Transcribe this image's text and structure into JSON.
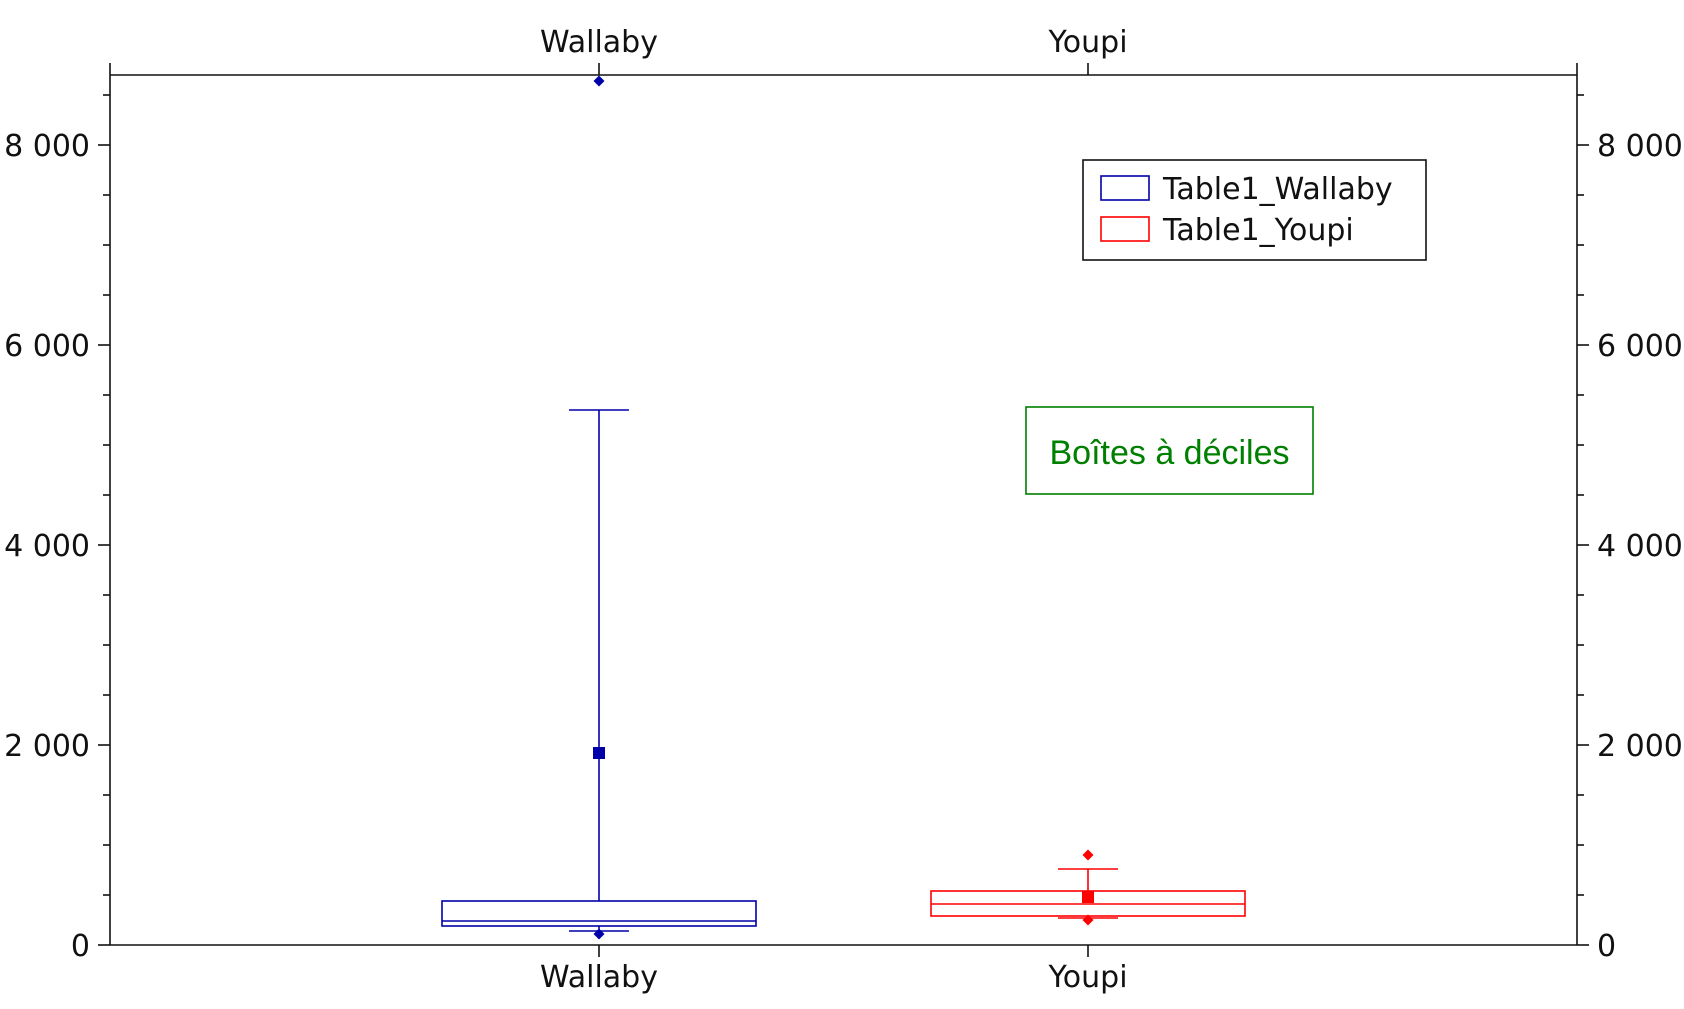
{
  "chart_data": {
    "type": "box",
    "categories": [
      "Wallaby",
      "Youpi"
    ],
    "ylim": [
      0,
      8700
    ],
    "y_ticks": [
      0,
      2000,
      4000,
      6000,
      8000
    ],
    "y_tick_labels": [
      "0",
      "2 000",
      "4 000",
      "6 000",
      "8 000"
    ],
    "y_minor_step": 500,
    "series": [
      {
        "name": "Table1_Wallaby",
        "category": "Wallaby",
        "color": "#0000aa",
        "d1": 140,
        "q1": 190,
        "median": 240,
        "q3": 440,
        "d9": 5350,
        "mean": 1920,
        "min": 110,
        "max": 8640
      },
      {
        "name": "Table1_Youpi",
        "category": "Youpi",
        "color": "#ff0000",
        "d1": 270,
        "q1": 290,
        "median": 410,
        "q3": 540,
        "d9": 760,
        "mean": 480,
        "min": 250,
        "max": 900
      }
    ],
    "legend": {
      "placement": "top-right"
    },
    "annotation": {
      "text": "Boîtes à déciles",
      "color": "#008000"
    },
    "grid": false
  }
}
